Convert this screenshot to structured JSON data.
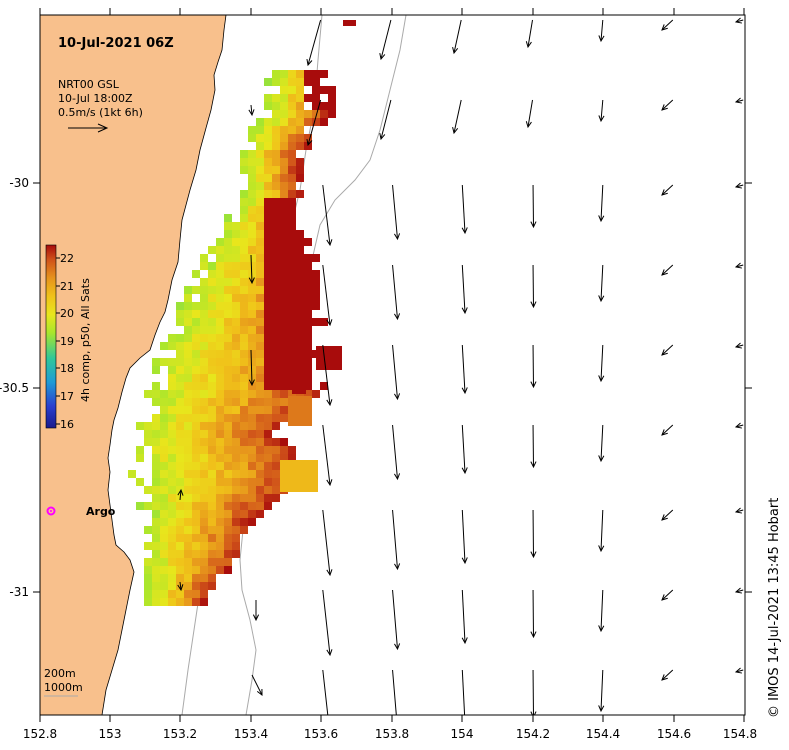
{
  "title": "10-Jul-2021 06Z",
  "legend": {
    "product": "NRT00 GSL",
    "time": "10-Jul 18:00Z",
    "scale": "0.5m/s (1kt 6h)"
  },
  "colorbar": {
    "label": "4h comp, p50, All Sats",
    "ticks": [
      "22",
      "21",
      "20",
      "19",
      "18",
      "17",
      "16"
    ],
    "min": 16,
    "max": 22.5
  },
  "axes": {
    "x_ticks": [
      "152.8",
      "153",
      "153.2",
      "153.4",
      "153.6",
      "153.8",
      "154",
      "154.2",
      "154.4",
      "154.6",
      "154.8"
    ],
    "y_ticks": [
      "-30",
      "-30.5",
      "-31"
    ]
  },
  "isobaths": [
    "200m",
    "1000m"
  ],
  "argo": {
    "label": "Argo",
    "color": "#ff00ff"
  },
  "credit": "© IMOS 14-Jul-2021 13:45 Hobart",
  "colors": {
    "land": "#f8c08c",
    "ocean": "#ffffff",
    "isobath": "#aaaaaa"
  }
}
